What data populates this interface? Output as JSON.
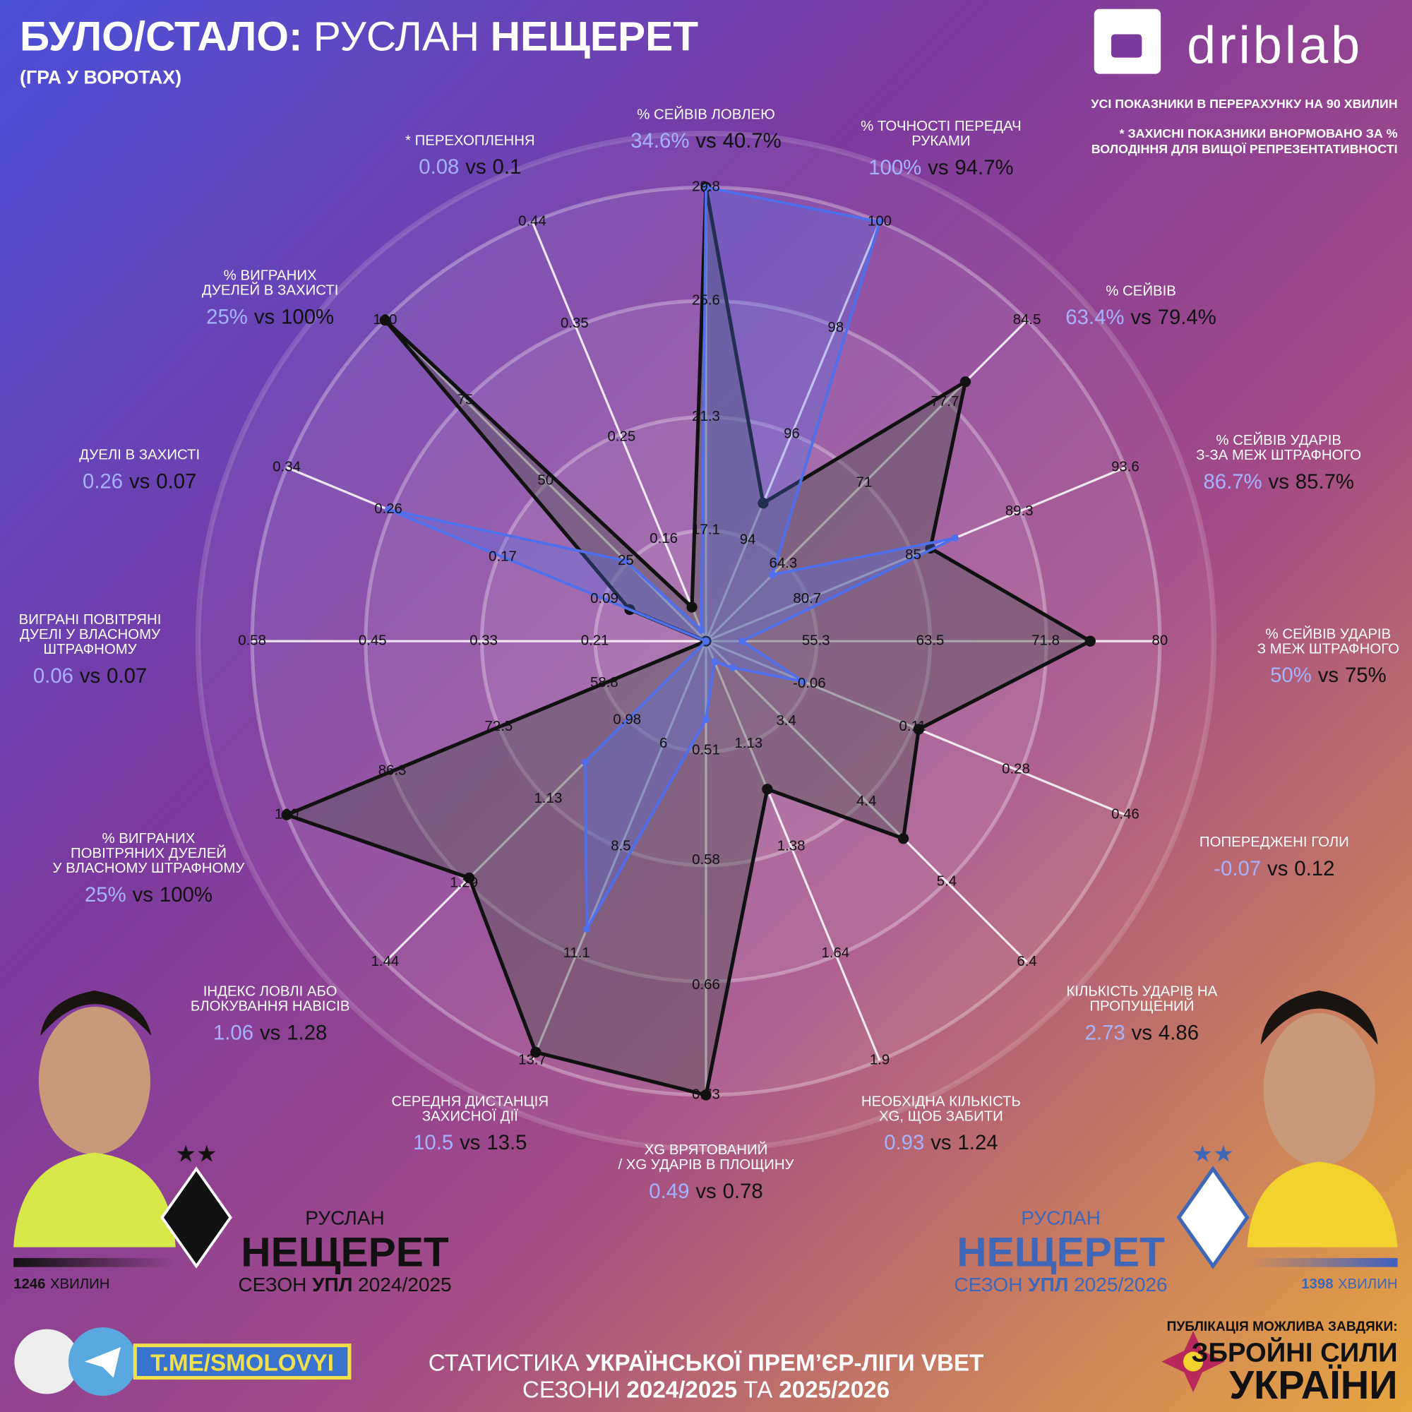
{
  "header": {
    "title": [
      "БУЛО/СТАЛО:",
      "РУСЛАН",
      "НЕЩЕРЕТ"
    ],
    "subtitle": "(ГРА У ВОРОТАХ)",
    "brand": "driblab",
    "notes": [
      "УСІ ПОКАЗНИКИ В ПЕРЕРАХУНКУ НА 90 ХВИЛИН",
      "* ЗАХИСНІ ПОКАЗНИКИ ВНОРМОВАНО ЗА %",
      "ВОЛОДІННЯ ДЛЯ ВИЩОЇ РЕПРЕЗЕНТАТИВНОСТІ"
    ]
  },
  "chart_data": {
    "type": "radar",
    "separator": "vs",
    "axes": [
      {
        "label": [
          "% СЕЙВІВ ЛОВЛЕЮ"
        ],
        "ticks": [
          17.1,
          21.3,
          25.6,
          29.8
        ],
        "rlim": [
          13.0,
          29.8
        ]
      },
      {
        "label": [
          "% ТОЧНОСТІ ПЕРЕДАЧ",
          "РУКАМИ"
        ],
        "ticks": [
          94,
          96,
          98,
          100
        ],
        "rlim": [
          92.1,
          100
        ]
      },
      {
        "label": [
          "% СЕЙВІВ"
        ],
        "ticks": [
          64.3,
          71,
          77.7,
          84.5
        ],
        "rlim": [
          57.9,
          84.5
        ]
      },
      {
        "label": [
          "% СЕЙВІВ УДАРІВ",
          "З-ЗА МЕЖ ШТРАФНОГО"
        ],
        "ticks": [
          80.7,
          85,
          89.3,
          93.6
        ],
        "rlim": [
          76.6,
          93.6
        ]
      },
      {
        "label": [
          "% СЕЙВІВ УДАРІВ",
          "З МЕЖ ШТРАФНОГО"
        ],
        "ticks": [
          55.3,
          63.5,
          71.8,
          80
        ],
        "rlim": [
          47.4,
          80
        ]
      },
      {
        "label": [
          "ПОПЕРЕДЖЕНІ ГОЛИ"
        ],
        "ticks": [
          -0.06,
          0.11,
          0.28,
          0.46
        ],
        "rlim": [
          -0.23,
          0.46
        ]
      },
      {
        "label": [
          "КІЛЬКІСТЬ УДАРІВ НА",
          "ПРОПУЩЕНИЙ"
        ],
        "ticks": [
          3.4,
          4.4,
          5.4,
          6.4
        ],
        "rlim": [
          2.4,
          6.4
        ]
      },
      {
        "label": [
          "НЕОБХІДНА КІЛЬКІСТЬ",
          "XG, ЩОБ ЗАБИТИ"
        ],
        "ticks": [
          1.13,
          1.38,
          1.64,
          1.9
        ],
        "rlim": [
          0.88,
          1.9
        ]
      },
      {
        "label": [
          "XG ВРЯТОВАНИЙ",
          "/ XG УДАРІВ В ПЛОЩИНУ"
        ],
        "ticks": [
          0.51,
          0.58,
          0.66,
          0.73
        ],
        "rlim": [
          0.44,
          0.73
        ]
      },
      {
        "label": [
          "СЕРЕДНЯ ДИСТАНЦІЯ",
          "ЗАХИСНОЇ ДІЇ"
        ],
        "ticks": [
          6,
          8.5,
          11.1,
          13.7
        ],
        "rlim": [
          3.5,
          13.7
        ]
      },
      {
        "label": [
          "ІНДЕКС ЛОВЛІ АБО",
          "БЛОКУВАННЯ НАВІСІВ"
        ],
        "ticks": [
          0.98,
          1.13,
          1.29,
          1.44
        ],
        "rlim": [
          0.83,
          1.44
        ]
      },
      {
        "label": [
          "% ВИГРАНИХ",
          "ПОВІТРЯНИХ ДУЕЛЕЙ",
          "У ВЛАСНОМУ ШТРАФНОМУ"
        ],
        "ticks": [
          58.8,
          72.5,
          86.3,
          100
        ],
        "rlim": [
          45.6,
          100
        ]
      },
      {
        "label": [
          "ВИГРАНІ ПОВІТРЯНІ",
          "ДУЕЛІ У ВЛАСНОМУ",
          "ШТРАФНОМУ"
        ],
        "ticks": [
          0.21,
          0.33,
          0.45,
          0.58
        ],
        "rlim": [
          0.09,
          0.58
        ]
      },
      {
        "label": [
          "ДУЕЛІ В ЗАХИСТІ"
        ],
        "ticks": [
          0.09,
          0.17,
          0.26,
          0.34
        ],
        "rlim": [
          0.01,
          0.34
        ]
      },
      {
        "label": [
          "% ВИГРАНИХ",
          "ДУЕЛЕЙ В ЗАХИСТІ"
        ],
        "ticks": [
          25,
          50,
          75,
          100
        ],
        "rlim": [
          0,
          100
        ]
      },
      {
        "label": [
          "* ПЕРЕХОПЛЕННЯ"
        ],
        "ticks": [
          0.16,
          0.25,
          0.35,
          0.44
        ],
        "rlim": [
          0.07,
          0.44
        ]
      }
    ],
    "series": [
      {
        "color": "#4f6fec",
        "values": [
          34.6,
          100,
          63.4,
          86.7,
          50,
          -0.07,
          2.73,
          0.93,
          0.49,
          10.5,
          1.06,
          25,
          0.06,
          0.26,
          25,
          0.08
        ],
        "value_labels": [
          "34.6%",
          "100%",
          "63.4%",
          "86.7%",
          "50%",
          "-0.07",
          "2.73",
          "0.93",
          "0.49",
          "10.5",
          "1.06",
          "25%",
          "0.06",
          "0.26",
          "25%",
          "0.08"
        ]
      },
      {
        "color": "#111111",
        "values": [
          40.7,
          94.7,
          79.4,
          85.7,
          75,
          0.12,
          4.86,
          1.24,
          0.78,
          13.5,
          1.28,
          100,
          0.07,
          0.07,
          100,
          0.1
        ],
        "value_labels": [
          "40.7%",
          "94.7%",
          "79.4%",
          "85.7%",
          "75%",
          "0.12",
          "4.86",
          "1.24",
          "0.78",
          "13.5",
          "1.28",
          "100%",
          "0.07",
          "0.07",
          "100%",
          "0.1"
        ]
      }
    ]
  },
  "players": [
    {
      "first_name": "РУСЛАН",
      "last_name": "НЕЩЕРЕТ",
      "season": [
        "СЕЗОН",
        "УПЛ",
        "2024/2025"
      ],
      "minutes": [
        "1246",
        "ХВИЛИН"
      ]
    },
    {
      "first_name": "РУСЛАН",
      "last_name": "НЕЩЕРЕТ",
      "season": [
        "СЕЗОН",
        "УПЛ",
        "2025/2026"
      ],
      "minutes": [
        "1398",
        "ХВИЛИН"
      ]
    }
  ],
  "footer": {
    "telegram": "T.ME/SMOLOVYI",
    "stats": [
      "СТАТИСТИКА",
      "УКРАЇНСЬКОЇ ПРЕМ’ЄР-ЛІГИ VBET"
    ],
    "seasons": [
      "СЕЗОНИ",
      "2024/2025",
      "ТА",
      "2025/2026"
    ],
    "sponsor": "ПУБЛІКАЦІЯ МОЖЛИВА ЗАВДЯКИ:",
    "army": [
      "ЗБРОЙНІ СИЛИ",
      "УКРАЇНИ"
    ]
  }
}
